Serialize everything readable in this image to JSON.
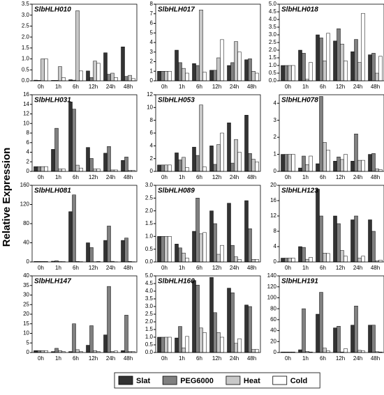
{
  "ylabel": "Relative Expression",
  "chart_data": [
    {
      "type": "bar",
      "title": "SlbHLH010",
      "categories": [
        "0h",
        "1h",
        "6h",
        "12h",
        "24h",
        "48h"
      ],
      "ylim": [
        0,
        3.5
      ],
      "yticks": [
        {
          "value": 0,
          "label": "0.0"
        },
        0.5,
        {
          "value": 1,
          "label": "1.0"
        },
        1.5,
        {
          "value": 2,
          "label": "2.0"
        },
        2.5,
        {
          "value": 3,
          "label": "3.0"
        },
        3.5
      ],
      "series": [
        {
          "name": "Slat",
          "color": "#333333",
          "values": [
            0.03,
            0.02,
            0.05,
            0.45,
            1.28,
            1.55
          ]
        },
        {
          "name": "PEG6000",
          "color": "#808080",
          "values": [
            0.02,
            0.02,
            0.03,
            0.15,
            0.3,
            0.2
          ]
        },
        {
          "name": "Heat",
          "color": "#c8c8c8",
          "values": [
            1.0,
            0.65,
            3.2,
            0.9,
            0.35,
            0.25
          ]
        },
        {
          "name": "Cold",
          "color": "#ffffff",
          "values": [
            1.0,
            0.15,
            0.45,
            0.8,
            0.15,
            0.1
          ]
        }
      ]
    },
    {
      "type": "bar",
      "title": "SlbHLH017",
      "categories": [
        "0h",
        "1h",
        "6h",
        "12h",
        "24h",
        "48h"
      ],
      "ylim": [
        0,
        8
      ],
      "yticks": [
        0,
        1,
        2,
        3,
        4,
        5,
        6,
        7,
        8
      ],
      "series": [
        {
          "name": "Slat",
          "color": "#333333",
          "values": [
            1,
            3.2,
            1.8,
            1.1,
            1.6,
            2.2
          ]
        },
        {
          "name": "PEG6000",
          "color": "#808080",
          "values": [
            1,
            1.9,
            1.6,
            1.1,
            1.9,
            2.3
          ]
        },
        {
          "name": "Heat",
          "color": "#c8c8c8",
          "values": [
            1,
            1.3,
            7.4,
            2.4,
            4.1,
            1.0
          ]
        },
        {
          "name": "Cold",
          "color": "#ffffff",
          "values": [
            1,
            0.8,
            0.9,
            4.3,
            3.0,
            0.8
          ]
        }
      ]
    },
    {
      "type": "bar",
      "title": "SlbHLH018",
      "categories": [
        "0h",
        "1h",
        "6h",
        "12h",
        "24h",
        "48h"
      ],
      "ylim": [
        0,
        5
      ],
      "yticks": [
        {
          "value": 0,
          "label": "0.0"
        },
        0.5,
        {
          "value": 1,
          "label": "1.0"
        },
        1.5,
        {
          "value": 2,
          "label": "2.0"
        },
        2.5,
        {
          "value": 3,
          "label": "3.0"
        },
        3.5,
        {
          "value": 4,
          "label": "4.0"
        },
        4.5,
        {
          "value": 5,
          "label": "5.0"
        }
      ],
      "series": [
        {
          "name": "Slat",
          "color": "#333333",
          "values": [
            1,
            2.0,
            3.0,
            2.6,
            1.9,
            1.7
          ]
        },
        {
          "name": "PEG6000",
          "color": "#808080",
          "values": [
            1,
            1.8,
            2.8,
            3.4,
            2.7,
            1.8
          ]
        },
        {
          "name": "Heat",
          "color": "#c8c8c8",
          "values": [
            1,
            0.1,
            1.3,
            2.4,
            1.2,
            0.5
          ]
        },
        {
          "name": "Cold",
          "color": "#ffffff",
          "values": [
            1,
            1.2,
            3.1,
            1.3,
            4.4,
            1.6
          ]
        }
      ]
    },
    {
      "type": "bar",
      "title": "SlbHLH031",
      "categories": [
        "0h",
        "1h",
        "6h",
        "12h",
        "24h",
        "48h"
      ],
      "ylim": [
        0,
        16
      ],
      "yticks": [
        0,
        2,
        4,
        6,
        8,
        10,
        12,
        14,
        16
      ],
      "series": [
        {
          "name": "Slat",
          "color": "#333333",
          "values": [
            1,
            4.6,
            14.5,
            5,
            3.8,
            2.3
          ]
        },
        {
          "name": "PEG6000",
          "color": "#808080",
          "values": [
            1,
            9.0,
            13,
            2.7,
            5.2,
            3
          ]
        },
        {
          "name": "Heat",
          "color": "#c8c8c8",
          "values": [
            1,
            0.5,
            1.3,
            0.5,
            0.3,
            0.2
          ]
        },
        {
          "name": "Cold",
          "color": "#ffffff",
          "values": [
            1,
            0.5,
            0.7,
            0.5,
            0.3,
            0.2
          ]
        }
      ]
    },
    {
      "type": "bar",
      "title": "SlbHLH053",
      "categories": [
        "0h",
        "1h",
        "6h",
        "12h",
        "24h",
        "48h"
      ],
      "ylim": [
        0,
        12
      ],
      "yticks": [
        0,
        2,
        4,
        6,
        8,
        10,
        12
      ],
      "series": [
        {
          "name": "Slat",
          "color": "#333333",
          "values": [
            1,
            2.9,
            3.8,
            4.0,
            7.6,
            8.8
          ]
        },
        {
          "name": "PEG6000",
          "color": "#808080",
          "values": [
            1,
            1.8,
            2.5,
            1.1,
            1.3,
            2.8
          ]
        },
        {
          "name": "Heat",
          "color": "#c8c8c8",
          "values": [
            1,
            2.2,
            10.4,
            4.2,
            5.0,
            1.9
          ]
        },
        {
          "name": "Cold",
          "color": "#ffffff",
          "values": [
            1,
            0.6,
            0.7,
            6.0,
            3.0,
            1.5
          ]
        }
      ]
    },
    {
      "type": "bar",
      "title": "SlbHLH078",
      "categories": [
        "0h",
        "1h",
        "6h",
        "12h",
        "24h",
        "48h"
      ],
      "ylim": [
        0,
        4.5
      ],
      "yticks": [
        0,
        1,
        2,
        3,
        4
      ],
      "series": [
        {
          "name": "Slat",
          "color": "#333333",
          "values": [
            1,
            0.2,
            0.45,
            0.6,
            0.6,
            1.0
          ]
        },
        {
          "name": "PEG6000",
          "color": "#808080",
          "values": [
            1,
            0.9,
            4.4,
            0.85,
            2.2,
            1.05
          ]
        },
        {
          "name": "Heat",
          "color": "#c8c8c8",
          "values": [
            1,
            0.4,
            1.7,
            0.7,
            0.65,
            0.15
          ]
        },
        {
          "name": "Cold",
          "color": "#ffffff",
          "values": [
            1,
            0.9,
            1.25,
            1.0,
            0.65,
            0.1
          ]
        }
      ]
    },
    {
      "type": "bar",
      "title": "SlbHLH081",
      "categories": [
        "0h",
        "1h",
        "6h",
        "12h",
        "24h",
        "48h"
      ],
      "ylim": [
        0,
        160
      ],
      "yticks": [
        0,
        40,
        80,
        120,
        160
      ],
      "series": [
        {
          "name": "Slat",
          "color": "#333333",
          "values": [
            1,
            1.5,
            105,
            40,
            45,
            45
          ]
        },
        {
          "name": "PEG6000",
          "color": "#808080",
          "values": [
            1,
            2.5,
            140,
            30,
            75,
            50
          ]
        },
        {
          "name": "Heat",
          "color": "#c8c8c8",
          "values": [
            1,
            0.8,
            1.0,
            0.5,
            1.3,
            1.0
          ]
        },
        {
          "name": "Cold",
          "color": "#ffffff",
          "values": [
            1,
            0.7,
            0.6,
            1.0,
            0.4,
            0.5
          ]
        }
      ]
    },
    {
      "type": "bar",
      "title": "SlbHLH089",
      "categories": [
        "0h",
        "1h",
        "6h",
        "12h",
        "24h",
        "48h"
      ],
      "ylim": [
        0,
        3
      ],
      "yticks": [
        {
          "value": 0,
          "label": "0.0"
        },
        0.5,
        {
          "value": 1,
          "label": "1.0"
        },
        1.5,
        {
          "value": 2,
          "label": "2.0"
        },
        2.5,
        {
          "value": 3,
          "label": "3.0"
        }
      ],
      "series": [
        {
          "name": "Slat",
          "color": "#333333",
          "values": [
            1,
            0.7,
            1.2,
            2.0,
            2.3,
            2.4
          ]
        },
        {
          "name": "PEG6000",
          "color": "#808080",
          "values": [
            1,
            0.55,
            2.5,
            1.5,
            0.65,
            1.3
          ]
        },
        {
          "name": "Heat",
          "color": "#c8c8c8",
          "values": [
            1,
            0.35,
            1.1,
            0.3,
            0.2,
            0.1
          ]
        },
        {
          "name": "Cold",
          "color": "#ffffff",
          "values": [
            1,
            0.15,
            1.15,
            0.65,
            0.1,
            0.1
          ]
        }
      ]
    },
    {
      "type": "bar",
      "title": "SlbHLH123",
      "categories": [
        "0h",
        "1h",
        "6h",
        "12h",
        "24h",
        "48h"
      ],
      "ylim": [
        0,
        20
      ],
      "yticks": [
        0,
        4,
        8,
        12,
        16,
        20
      ],
      "series": [
        {
          "name": "Slat",
          "color": "#333333",
          "values": [
            1,
            4,
            19,
            12,
            11,
            11
          ]
        },
        {
          "name": "PEG6000",
          "color": "#808080",
          "values": [
            1,
            3.8,
            12,
            10,
            12,
            8
          ]
        },
        {
          "name": "Heat",
          "color": "#c8c8c8",
          "values": [
            1,
            0.7,
            2.3,
            3,
            1,
            0.3
          ]
        },
        {
          "name": "Cold",
          "color": "#ffffff",
          "values": [
            1,
            1.2,
            2.2,
            1.5,
            1.5,
            0.5
          ]
        }
      ]
    },
    {
      "type": "bar",
      "title": "SlbHLH147",
      "categories": [
        "0h",
        "1h",
        "6h",
        "12h",
        "24h",
        "48h"
      ],
      "ylim": [
        0,
        40
      ],
      "yticks": [
        0,
        5,
        10,
        15,
        20,
        25,
        30,
        35,
        40
      ],
      "series": [
        {
          "name": "Slat",
          "color": "#333333",
          "values": [
            1,
            0.5,
            0.5,
            3.8,
            9.2,
            1
          ]
        },
        {
          "name": "PEG6000",
          "color": "#808080",
          "values": [
            1,
            2.2,
            15,
            14,
            34.5,
            19.5
          ]
        },
        {
          "name": "Heat",
          "color": "#c8c8c8",
          "values": [
            1,
            1,
            1.5,
            1,
            0.5,
            0.5
          ]
        },
        {
          "name": "Cold",
          "color": "#ffffff",
          "values": [
            1,
            0.5,
            0.5,
            0.5,
            0.8,
            0.5
          ]
        }
      ]
    },
    {
      "type": "bar",
      "title": "SlbHLH160",
      "categories": [
        "0h",
        "1h",
        "6h",
        "12h",
        "24h",
        "48h"
      ],
      "ylim": [
        0,
        5
      ],
      "yticks": [
        {
          "value": 0,
          "label": "0.0"
        },
        0.5,
        {
          "value": 1,
          "label": "1.0"
        },
        1.5,
        {
          "value": 2,
          "label": "2.0"
        },
        2.5,
        {
          "value": 3,
          "label": "3.0"
        },
        3.5,
        {
          "value": 4,
          "label": "4.0"
        },
        4.5,
        {
          "value": 5,
          "label": "5.0"
        }
      ],
      "series": [
        {
          "name": "Slat",
          "color": "#333333",
          "values": [
            1,
            0.95,
            4.7,
            4.9,
            4.2,
            3.1
          ]
        },
        {
          "name": "PEG6000",
          "color": "#808080",
          "values": [
            1,
            1.7,
            4.4,
            2.6,
            3.9,
            3.0
          ]
        },
        {
          "name": "Heat",
          "color": "#c8c8c8",
          "values": [
            1,
            0.3,
            1.6,
            1.3,
            0.6,
            0.2
          ]
        },
        {
          "name": "Cold",
          "color": "#ffffff",
          "values": [
            1,
            1.05,
            1.3,
            1.0,
            0.9,
            0.2
          ]
        }
      ]
    },
    {
      "type": "bar",
      "title": "SlbHLH191",
      "categories": [
        "0h",
        "1h",
        "6h",
        "12h",
        "24h",
        "48h"
      ],
      "ylim": [
        0,
        140
      ],
      "yticks": [
        0,
        20,
        40,
        60,
        80,
        100,
        120,
        140
      ],
      "series": [
        {
          "name": "Slat",
          "color": "#333333",
          "values": [
            1,
            5,
            70,
            45,
            50,
            50
          ]
        },
        {
          "name": "PEG6000",
          "color": "#808080",
          "values": [
            1,
            80,
            110,
            48,
            85,
            50
          ]
        },
        {
          "name": "Heat",
          "color": "#c8c8c8",
          "values": [
            1,
            2,
            8,
            1,
            4,
            1.5
          ]
        },
        {
          "name": "Cold",
          "color": "#ffffff",
          "values": [
            1,
            1,
            3,
            7,
            3,
            1
          ]
        }
      ]
    }
  ]
}
